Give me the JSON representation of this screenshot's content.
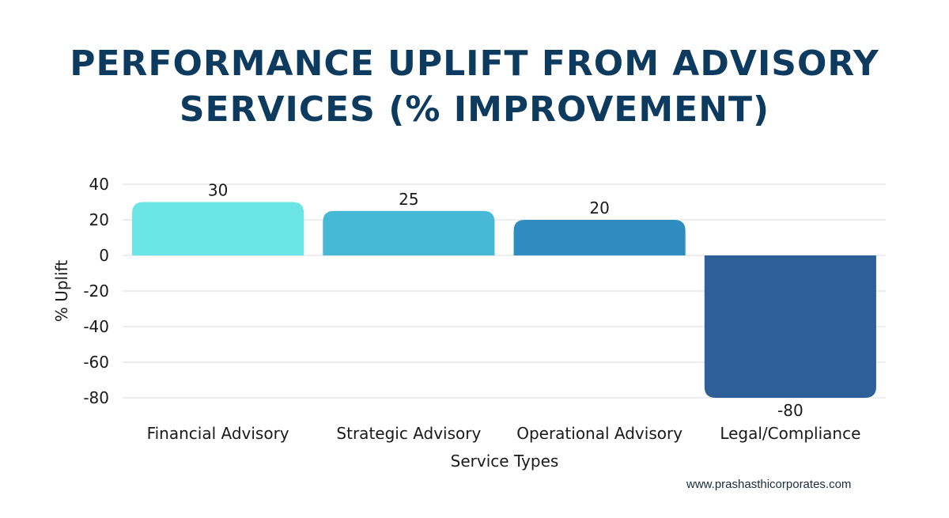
{
  "title_lines": [
    "PERFORMANCE UPLIFT FROM ADVISORY",
    "SERVICES (% IMPROVEMENT)"
  ],
  "footer": "www.prashasthicorporates.com",
  "chart_data": {
    "type": "bar",
    "title": "PERFORMANCE UPLIFT FROM ADVISORY SERVICES (% IMPROVEMENT)",
    "categories": [
      "Financial Advisory",
      "Strategic Advisory",
      "Operational Advisory",
      "Legal/Compliance"
    ],
    "values": [
      30,
      25,
      20,
      -80
    ],
    "data_labels": [
      "30",
      "25",
      "20",
      "-80"
    ],
    "xlabel": "Service Types",
    "ylabel": "% Uplift",
    "ylim": [
      -80,
      40
    ],
    "yticks": [
      40,
      20,
      0,
      -20,
      -40,
      -60,
      -80
    ],
    "grid": true,
    "legend": "none",
    "colors": [
      "#6be4e6",
      "#45b9d6",
      "#2e8cc0",
      "#2f5f99"
    ],
    "gridline_color": "#dddddd",
    "text_color": "#1a1a1a"
  }
}
